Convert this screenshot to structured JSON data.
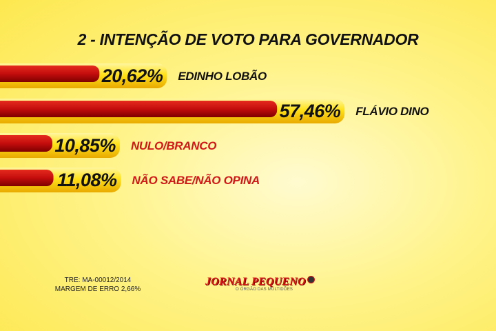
{
  "chart_data": {
    "type": "bar",
    "orientation": "horizontal",
    "title": "2 - INTENÇÃO DE VOTO PARA GOVERNADOR",
    "categories": [
      "EDINHO LOBÃO",
      "FLÁVIO DINO",
      "NULO/BRANCO",
      "NÃO SABE/NÃO OPINA"
    ],
    "values": [
      20.62,
      57.46,
      10.85,
      11.08
    ],
    "value_labels": [
      "20,62%",
      "57,46%",
      "10,85%",
      "11,08%"
    ],
    "category_label_colors": [
      "#111111",
      "#111111",
      "#d01818",
      "#d01818"
    ],
    "grid": false,
    "legend": "none"
  },
  "colors": {
    "bar_red": "#c40d0d",
    "bar_dark_red": "#7d0000",
    "bar_yellow": "#ffe21a",
    "bar_yellow_dark": "#e0a800",
    "background": "#fff38a"
  },
  "footnote": {
    "line1": "TRE: MA-00012/2014",
    "line2": "MARGEM DE ERRO 2,66%"
  },
  "logo": {
    "name": "JORNAL PEQUENO",
    "tagline": "O ÓRGÃO DAS MULTIDÕES"
  }
}
